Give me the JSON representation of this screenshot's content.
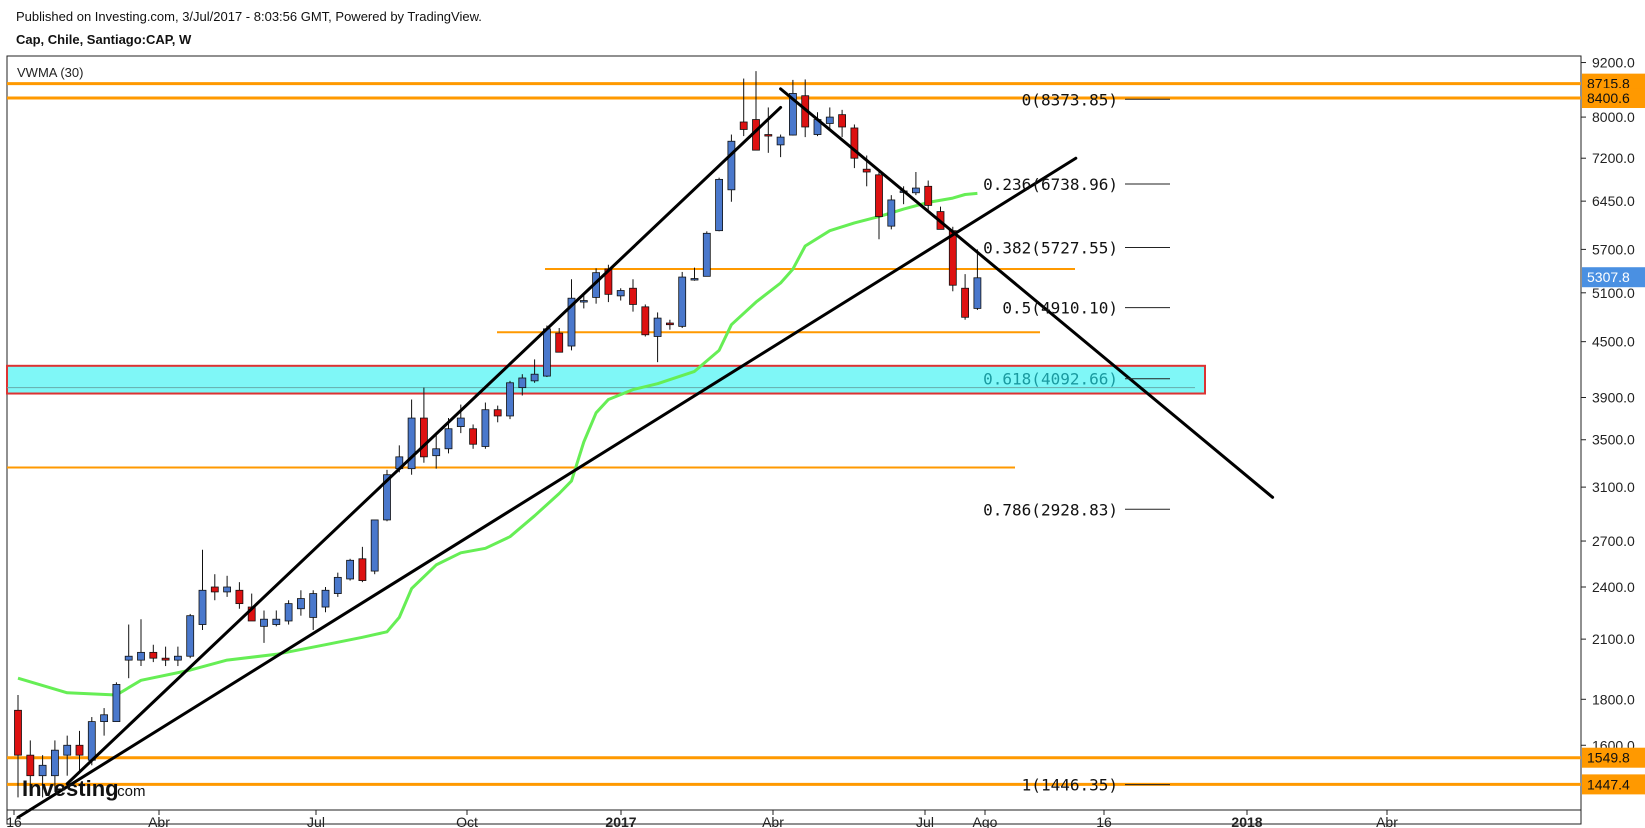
{
  "header": {
    "published": "Published on Investing.com, 3/Jul/2017 - 8:03:56 GMT, Powered by TradingView.",
    "symbol": "Cap, Chile, Santiago:CAP, W"
  },
  "indicator_label": "VWMA (30)",
  "watermark": {
    "brand": "Investing",
    "suffix": ".com"
  },
  "colors": {
    "up": "#4a78cc",
    "down": "#dd1111",
    "vwma": "#66ee55",
    "level": "#ff9900",
    "zone_fill": "#7ff7f7",
    "zone_border": "#dd3333",
    "trend": "#000000",
    "price_tag": "#4a90e2"
  },
  "chart_data": {
    "type": "candlestick",
    "interval": "W",
    "y_scale": "log",
    "ylim": [
      1380,
      9260
    ],
    "x_tick_labels": [
      "16",
      "Abr",
      "Jul",
      "Oct",
      "2017",
      "Abr",
      "Jul",
      "Ago",
      "16",
      "2018",
      "Abr"
    ],
    "y_tick_labels": [
      9200,
      8000,
      7200,
      6450,
      5700,
      5100,
      4500,
      3900,
      3500,
      3100,
      2700,
      2400,
      2100,
      1800,
      1600
    ],
    "price_tags": [
      {
        "label": "8715.8",
        "value": 8715.8
      },
      {
        "label": "8400.6",
        "value": 8400.6
      },
      {
        "label": "5307.8",
        "value": 5307.8
      },
      {
        "label": "1549.8",
        "value": 1549.8
      },
      {
        "label": "1447.4",
        "value": 1447.4
      }
    ],
    "fib_levels": [
      {
        "label": "0(8373.85)",
        "value": 8373.85
      },
      {
        "label": "0.236(6738.96)",
        "value": 6738.96
      },
      {
        "label": "0.382(5727.55)",
        "value": 5727.55
      },
      {
        "label": "0.5(4910.10)",
        "value": 4910.1
      },
      {
        "label": "0.618(4092.66)",
        "value": 4092.66
      },
      {
        "label": "0.786(2928.83)",
        "value": 2928.83
      },
      {
        "label": "1(1446.35)",
        "value": 1446.35
      }
    ],
    "horizontal_levels": [
      8715.8,
      8400.6,
      5420,
      4610,
      3260,
      1549.8,
      1447.4
    ],
    "support_zone": [
      3940,
      4230
    ],
    "candles": [
      {
        "o": 1750,
        "h": 1820,
        "l": 1400,
        "c": 1560
      },
      {
        "o": 1560,
        "h": 1620,
        "l": 1420,
        "c": 1480
      },
      {
        "o": 1480,
        "h": 1560,
        "l": 1400,
        "c": 1520
      },
      {
        "o": 1480,
        "h": 1620,
        "l": 1420,
        "c": 1580
      },
      {
        "o": 1560,
        "h": 1640,
        "l": 1480,
        "c": 1600
      },
      {
        "o": 1600,
        "h": 1660,
        "l": 1500,
        "c": 1560
      },
      {
        "o": 1540,
        "h": 1720,
        "l": 1520,
        "c": 1700
      },
      {
        "o": 1700,
        "h": 1760,
        "l": 1640,
        "c": 1730
      },
      {
        "o": 1700,
        "h": 1880,
        "l": 1700,
        "c": 1870
      },
      {
        "o": 1990,
        "h": 2180,
        "l": 1900,
        "c": 2010
      },
      {
        "o": 1990,
        "h": 2210,
        "l": 1960,
        "c": 2030
      },
      {
        "o": 2030,
        "h": 2070,
        "l": 1980,
        "c": 2000
      },
      {
        "o": 2000,
        "h": 2060,
        "l": 1960,
        "c": 1990
      },
      {
        "o": 1990,
        "h": 2060,
        "l": 1960,
        "c": 2010
      },
      {
        "o": 2010,
        "h": 2240,
        "l": 2000,
        "c": 2230
      },
      {
        "o": 2180,
        "h": 2640,
        "l": 2150,
        "c": 2380
      },
      {
        "o": 2400,
        "h": 2480,
        "l": 2320,
        "c": 2370
      },
      {
        "o": 2370,
        "h": 2470,
        "l": 2340,
        "c": 2400
      },
      {
        "o": 2380,
        "h": 2430,
        "l": 2270,
        "c": 2300
      },
      {
        "o": 2280,
        "h": 2360,
        "l": 2200,
        "c": 2200
      },
      {
        "o": 2170,
        "h": 2260,
        "l": 2080,
        "c": 2210
      },
      {
        "o": 2180,
        "h": 2260,
        "l": 2170,
        "c": 2210
      },
      {
        "o": 2200,
        "h": 2320,
        "l": 2180,
        "c": 2300
      },
      {
        "o": 2270,
        "h": 2380,
        "l": 2230,
        "c": 2330
      },
      {
        "o": 2220,
        "h": 2380,
        "l": 2150,
        "c": 2360
      },
      {
        "o": 2280,
        "h": 2400,
        "l": 2250,
        "c": 2380
      },
      {
        "o": 2360,
        "h": 2490,
        "l": 2340,
        "c": 2460
      },
      {
        "o": 2450,
        "h": 2580,
        "l": 2440,
        "c": 2570
      },
      {
        "o": 2580,
        "h": 2660,
        "l": 2430,
        "c": 2440
      },
      {
        "o": 2500,
        "h": 2850,
        "l": 2480,
        "c": 2850
      },
      {
        "o": 2850,
        "h": 3240,
        "l": 2840,
        "c": 3200
      },
      {
        "o": 3250,
        "h": 3450,
        "l": 3220,
        "c": 3350
      },
      {
        "o": 3250,
        "h": 3880,
        "l": 3200,
        "c": 3700
      },
      {
        "o": 3700,
        "h": 4000,
        "l": 3300,
        "c": 3350
      },
      {
        "o": 3360,
        "h": 3560,
        "l": 3250,
        "c": 3420
      },
      {
        "o": 3420,
        "h": 3700,
        "l": 3380,
        "c": 3600
      },
      {
        "o": 3620,
        "h": 3830,
        "l": 3560,
        "c": 3700
      },
      {
        "o": 3600,
        "h": 3640,
        "l": 3420,
        "c": 3460
      },
      {
        "o": 3440,
        "h": 3850,
        "l": 3420,
        "c": 3780
      },
      {
        "o": 3780,
        "h": 3820,
        "l": 3660,
        "c": 3720
      },
      {
        "o": 3720,
        "h": 4070,
        "l": 3690,
        "c": 4050
      },
      {
        "o": 4000,
        "h": 4140,
        "l": 3920,
        "c": 4100
      },
      {
        "o": 4070,
        "h": 4300,
        "l": 4050,
        "c": 4140
      },
      {
        "o": 4120,
        "h": 4690,
        "l": 4110,
        "c": 4650
      },
      {
        "o": 4600,
        "h": 4660,
        "l": 4380,
        "c": 4380
      },
      {
        "o": 4450,
        "h": 5280,
        "l": 4400,
        "c": 5030
      },
      {
        "o": 5000,
        "h": 5090,
        "l": 4900,
        "c": 5000
      },
      {
        "o": 5040,
        "h": 5430,
        "l": 4960,
        "c": 5370
      },
      {
        "o": 5420,
        "h": 5480,
        "l": 4980,
        "c": 5080
      },
      {
        "o": 5060,
        "h": 5160,
        "l": 5000,
        "c": 5130
      },
      {
        "o": 5160,
        "h": 5280,
        "l": 4860,
        "c": 4950
      },
      {
        "o": 4920,
        "h": 4950,
        "l": 4560,
        "c": 4580
      },
      {
        "o": 4560,
        "h": 4850,
        "l": 4270,
        "c": 4780
      },
      {
        "o": 4720,
        "h": 4760,
        "l": 4640,
        "c": 4700
      },
      {
        "o": 4680,
        "h": 5380,
        "l": 4660,
        "c": 5310
      },
      {
        "o": 5290,
        "h": 5440,
        "l": 5260,
        "c": 5290
      },
      {
        "o": 5320,
        "h": 5970,
        "l": 5320,
        "c": 5940
      },
      {
        "o": 5980,
        "h": 6850,
        "l": 5970,
        "c": 6820
      },
      {
        "o": 6640,
        "h": 7650,
        "l": 6440,
        "c": 7520
      },
      {
        "o": 7900,
        "h": 8830,
        "l": 7620,
        "c": 7750
      },
      {
        "o": 7950,
        "h": 9000,
        "l": 7400,
        "c": 7350
      },
      {
        "o": 7650,
        "h": 8200,
        "l": 7300,
        "c": 7640
      },
      {
        "o": 7450,
        "h": 7650,
        "l": 7220,
        "c": 7600
      },
      {
        "o": 7640,
        "h": 8800,
        "l": 7630,
        "c": 8500
      },
      {
        "o": 8450,
        "h": 8810,
        "l": 7600,
        "c": 7800
      },
      {
        "o": 7650,
        "h": 8100,
        "l": 7620,
        "c": 7950
      },
      {
        "o": 7870,
        "h": 8200,
        "l": 7720,
        "c": 8000
      },
      {
        "o": 8050,
        "h": 8150,
        "l": 7600,
        "c": 7800
      },
      {
        "o": 7780,
        "h": 7850,
        "l": 7020,
        "c": 7200
      },
      {
        "o": 7000,
        "h": 7250,
        "l": 6700,
        "c": 6950
      },
      {
        "o": 6900,
        "h": 7000,
        "l": 5850,
        "c": 6200
      },
      {
        "o": 6050,
        "h": 6550,
        "l": 6000,
        "c": 6470
      },
      {
        "o": 6620,
        "h": 6700,
        "l": 6400,
        "c": 6620
      },
      {
        "o": 6590,
        "h": 6950,
        "l": 6550,
        "c": 6670
      },
      {
        "o": 6700,
        "h": 6800,
        "l": 6300,
        "c": 6380
      },
      {
        "o": 6280,
        "h": 6360,
        "l": 6000,
        "c": 6000
      },
      {
        "o": 5980,
        "h": 6040,
        "l": 5120,
        "c": 5200
      },
      {
        "o": 5160,
        "h": 5350,
        "l": 4760,
        "c": 4790
      },
      {
        "o": 4900,
        "h": 5700,
        "l": 4880,
        "c": 5300
      }
    ],
    "vwma": [
      [
        0,
        1900
      ],
      [
        4,
        1830
      ],
      [
        8,
        1820
      ],
      [
        10,
        1890
      ],
      [
        14,
        1940
      ],
      [
        17,
        1990
      ],
      [
        21,
        2020
      ],
      [
        25,
        2070
      ],
      [
        28,
        2110
      ],
      [
        30,
        2140
      ],
      [
        31,
        2220
      ],
      [
        32,
        2390
      ],
      [
        34,
        2540
      ],
      [
        36,
        2620
      ],
      [
        38,
        2650
      ],
      [
        40,
        2730
      ],
      [
        42,
        2880
      ],
      [
        44,
        3050
      ],
      [
        45,
        3150
      ],
      [
        46,
        3480
      ],
      [
        47,
        3750
      ],
      [
        48,
        3880
      ],
      [
        50,
        3980
      ],
      [
        52,
        4040
      ],
      [
        55,
        4170
      ],
      [
        57,
        4400
      ],
      [
        58,
        4700
      ],
      [
        60,
        4980
      ],
      [
        62,
        5230
      ],
      [
        63,
        5420
      ],
      [
        64,
        5750
      ],
      [
        66,
        5980
      ],
      [
        68,
        6100
      ],
      [
        70,
        6200
      ],
      [
        72,
        6320
      ],
      [
        74,
        6430
      ],
      [
        76,
        6500
      ],
      [
        77,
        6560
      ],
      [
        78,
        6580
      ]
    ],
    "trendlines": [
      {
        "from": [
          4,
          1450
        ],
        "to": [
          62,
          8200
        ]
      },
      {
        "from": [
          0,
          1330
        ],
        "to": [
          86,
          7200
        ]
      },
      {
        "from": [
          62,
          8600
        ],
        "to": [
          102,
          3020
        ]
      }
    ]
  }
}
